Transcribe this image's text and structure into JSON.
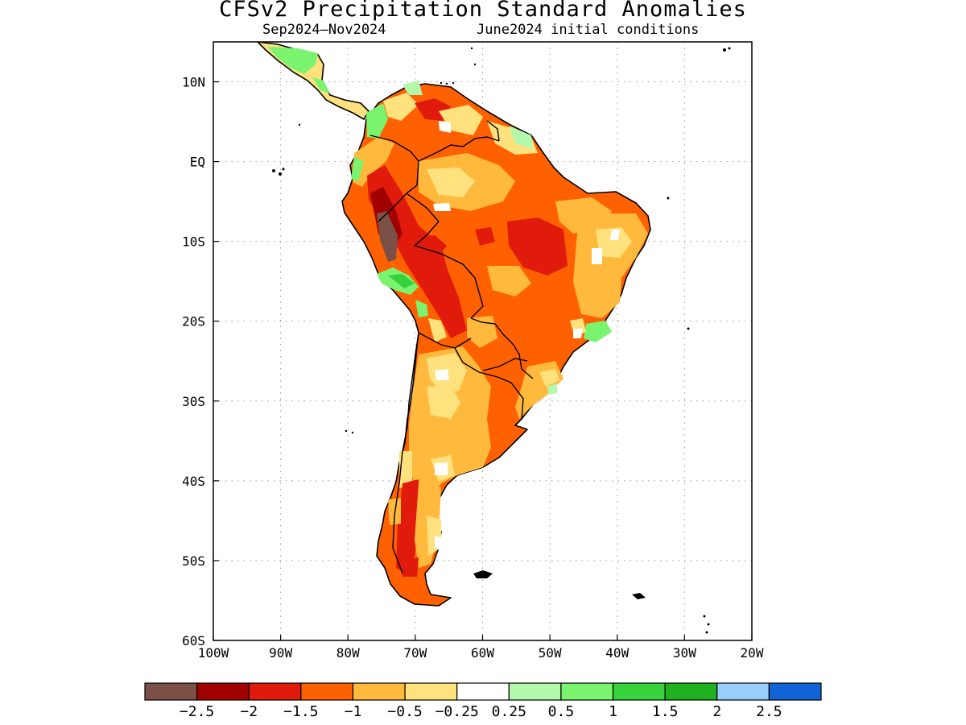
{
  "title": "CFSv2 Precipitation Standard Anomalies",
  "subtitle_left": "Sep2024–Nov2024",
  "subtitle_right": "June2024 initial conditions",
  "map": {
    "lon_range": [
      -100,
      -20
    ],
    "lat_range": [
      -60,
      15
    ],
    "x_ticks": [
      {
        "value": -100,
        "label": "100W"
      },
      {
        "value": -90,
        "label": "90W"
      },
      {
        "value": -80,
        "label": "80W"
      },
      {
        "value": -70,
        "label": "70W"
      },
      {
        "value": -60,
        "label": "60W"
      },
      {
        "value": -50,
        "label": "50W"
      },
      {
        "value": -40,
        "label": "40W"
      },
      {
        "value": -30,
        "label": "30W"
      },
      {
        "value": -20,
        "label": "20W"
      }
    ],
    "y_ticks": [
      {
        "value": 10,
        "label": "10N"
      },
      {
        "value": 0,
        "label": "EQ"
      },
      {
        "value": -10,
        "label": "10S"
      },
      {
        "value": -20,
        "label": "20S"
      },
      {
        "value": -30,
        "label": "30S"
      },
      {
        "value": -40,
        "label": "40S"
      },
      {
        "value": -50,
        "label": "50S"
      },
      {
        "value": -60,
        "label": "60S"
      }
    ],
    "grid": "dotted"
  },
  "legend": {
    "colors": [
      "#7b5147",
      "#a00000",
      "#e01b0b",
      "#ff6100",
      "#ffb93d",
      "#ffe17d",
      "#ffffff",
      "#b3f9ab",
      "#7af46f",
      "#37d23c",
      "#1fb11f",
      "#97cff8",
      "#1263d6"
    ],
    "labels": [
      "−2.5",
      "−2",
      "−1.5",
      "−1",
      "−0.5",
      "−0.25",
      "0.25",
      "0.5",
      "1",
      "1.5",
      "2",
      "2.5"
    ]
  }
}
